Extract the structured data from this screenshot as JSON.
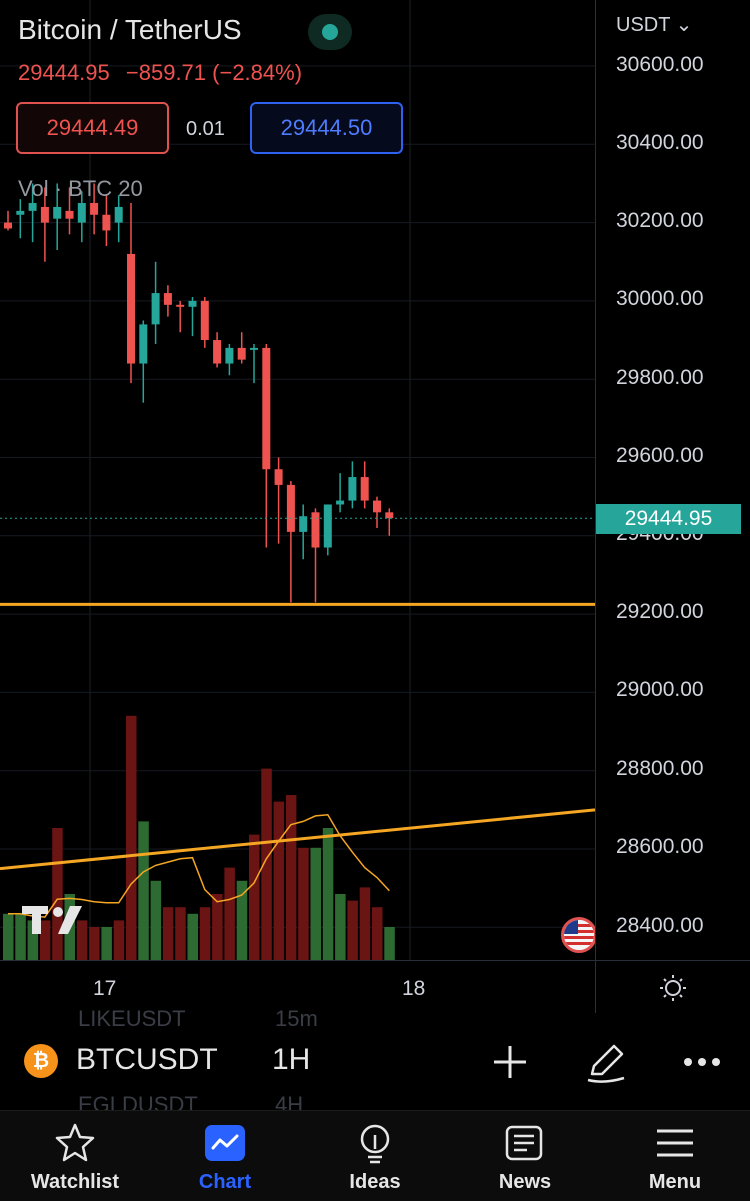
{
  "header": {
    "title": "Bitcoin / TetherUS",
    "last_price": "29444.95",
    "change": "−859.71 (−2.84%)",
    "bid": "29444.49",
    "spread": "0.01",
    "ask": "29444.50",
    "volume_label": "Vol · BTC",
    "volume_value": "20"
  },
  "price_axis": {
    "currency": "USDT",
    "labels": [
      "30600.00",
      "30400.00",
      "30200.00",
      "30000.00",
      "29800.00",
      "29600.00",
      "29400.00",
      "29200.00",
      "29000.00",
      "28800.00",
      "28600.00",
      "28400.00"
    ],
    "current_price_tag": "29444.95"
  },
  "time_axis": {
    "labels": [
      "17",
      "18"
    ]
  },
  "ghost_list": {
    "row1_symbol": "LIKEUSDT",
    "row1_interval": "15m",
    "row2_symbol": "EGLDUSDT",
    "row2_interval": "4H"
  },
  "toolbar": {
    "coin_glyph": "₿",
    "symbol": "BTCUSDT",
    "interval": "1H"
  },
  "nav": {
    "items": [
      "Watchlist",
      "Chart",
      "Ideas",
      "News",
      "Menu"
    ],
    "active": "Chart"
  },
  "colors": {
    "up": "#26a69a",
    "down": "#ef5350",
    "line": "#f5a623",
    "accent": "#2962ff"
  },
  "icons": [
    "bitcoin-icon",
    "plus-icon",
    "pencil-icon",
    "more-icon",
    "star-icon",
    "chart-icon",
    "lightbulb-icon",
    "news-icon",
    "menu-icon",
    "sun-icon",
    "us-flag-icon",
    "tradingview-logo"
  ],
  "chart_data": {
    "type": "candlestick",
    "interval": "1H",
    "price_range": [
      28300,
      30700
    ],
    "candles": [
      {
        "o": 30200,
        "h": 30230,
        "l": 30180,
        "c": 30185
      },
      {
        "o": 30220,
        "h": 30260,
        "l": 30160,
        "c": 30230
      },
      {
        "o": 30230,
        "h": 30300,
        "l": 30150,
        "c": 30250
      },
      {
        "o": 30240,
        "h": 30290,
        "l": 30100,
        "c": 30200
      },
      {
        "o": 30210,
        "h": 30300,
        "l": 30130,
        "c": 30240
      },
      {
        "o": 30230,
        "h": 30290,
        "l": 30170,
        "c": 30210
      },
      {
        "o": 30200,
        "h": 30280,
        "l": 30150,
        "c": 30250
      },
      {
        "o": 30250,
        "h": 30300,
        "l": 30170,
        "c": 30220
      },
      {
        "o": 30220,
        "h": 30270,
        "l": 30140,
        "c": 30180
      },
      {
        "o": 30200,
        "h": 30270,
        "l": 30150,
        "c": 30240
      },
      {
        "o": 30120,
        "h": 30250,
        "l": 29790,
        "c": 29840
      },
      {
        "o": 29840,
        "h": 29950,
        "l": 29740,
        "c": 29940
      },
      {
        "o": 29940,
        "h": 30100,
        "l": 29890,
        "c": 30020
      },
      {
        "o": 30020,
        "h": 30040,
        "l": 29960,
        "c": 29990
      },
      {
        "o": 29990,
        "h": 30000,
        "l": 29920,
        "c": 29985
      },
      {
        "o": 29985,
        "h": 30010,
        "l": 29910,
        "c": 30000
      },
      {
        "o": 30000,
        "h": 30010,
        "l": 29880,
        "c": 29900
      },
      {
        "o": 29900,
        "h": 29920,
        "l": 29830,
        "c": 29840
      },
      {
        "o": 29840,
        "h": 29890,
        "l": 29810,
        "c": 29880
      },
      {
        "o": 29880,
        "h": 29920,
        "l": 29840,
        "c": 29850
      },
      {
        "o": 29875,
        "h": 29890,
        "l": 29790,
        "c": 29880
      },
      {
        "o": 29880,
        "h": 29890,
        "l": 29370,
        "c": 29570
      },
      {
        "o": 29570,
        "h": 29600,
        "l": 29380,
        "c": 29530
      },
      {
        "o": 29530,
        "h": 29540,
        "l": 29230,
        "c": 29410
      },
      {
        "o": 29410,
        "h": 29480,
        "l": 29340,
        "c": 29450
      },
      {
        "o": 29460,
        "h": 29470,
        "l": 29230,
        "c": 29370
      },
      {
        "o": 29370,
        "h": 29480,
        "l": 29350,
        "c": 29480
      },
      {
        "o": 29480,
        "h": 29560,
        "l": 29460,
        "c": 29490
      },
      {
        "o": 29490,
        "h": 29590,
        "l": 29470,
        "c": 29550
      },
      {
        "o": 29550,
        "h": 29590,
        "l": 29470,
        "c": 29490
      },
      {
        "o": 29490,
        "h": 29500,
        "l": 29420,
        "c": 29460
      },
      {
        "o": 29460,
        "h": 29470,
        "l": 29400,
        "c": 29445
      }
    ],
    "volume": [
      {
        "v": 7,
        "up": true
      },
      {
        "v": 7,
        "up": true
      },
      {
        "v": 6,
        "up": true
      },
      {
        "v": 6,
        "up": false
      },
      {
        "v": 20,
        "up": false
      },
      {
        "v": 10,
        "up": true
      },
      {
        "v": 6,
        "up": false
      },
      {
        "v": 5,
        "up": false
      },
      {
        "v": 5,
        "up": true
      },
      {
        "v": 6,
        "up": false
      },
      {
        "v": 37,
        "up": false
      },
      {
        "v": 21,
        "up": true
      },
      {
        "v": 12,
        "up": true
      },
      {
        "v": 8,
        "up": false
      },
      {
        "v": 8,
        "up": false
      },
      {
        "v": 7,
        "up": true
      },
      {
        "v": 8,
        "up": false
      },
      {
        "v": 10,
        "up": false
      },
      {
        "v": 14,
        "up": false
      },
      {
        "v": 12,
        "up": true
      },
      {
        "v": 19,
        "up": false
      },
      {
        "v": 29,
        "up": false
      },
      {
        "v": 24,
        "up": false
      },
      {
        "v": 25,
        "up": false
      },
      {
        "v": 17,
        "up": false
      },
      {
        "v": 17,
        "up": true
      },
      {
        "v": 20,
        "up": true
      },
      {
        "v": 10,
        "up": true
      },
      {
        "v": 9,
        "up": false
      },
      {
        "v": 11,
        "up": false
      },
      {
        "v": 8,
        "up": false
      },
      {
        "v": 5,
        "up": true
      }
    ],
    "horizontal_line": 29225,
    "trend_line": {
      "from": 28550,
      "to": 28700
    }
  }
}
